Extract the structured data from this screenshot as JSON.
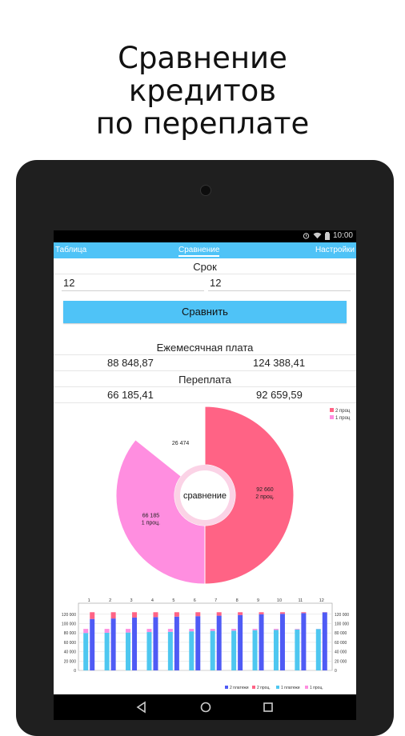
{
  "headline": [
    "Сравнение",
    "кредитов",
    "по переплате"
  ],
  "status": {
    "time": "10:00"
  },
  "tabs": [
    {
      "label": "Таблица",
      "active": false
    },
    {
      "label": "Сравнение",
      "active": true
    },
    {
      "label": "Настройки",
      "active": false
    }
  ],
  "term": {
    "label": "Срок",
    "left": "12",
    "right": "12"
  },
  "compare_button": "Сравнить",
  "monthly": {
    "label": "Ежемесячная плата",
    "left": "88 848,87",
    "right": "124 388,41"
  },
  "overpay": {
    "label": "Переплата",
    "left": "66 185,41",
    "right": "92 659,59"
  },
  "colors": {
    "accent": "#4fc3f7",
    "pink_dark": "#ff6385",
    "pink_light": "#ff8ee0",
    "blue_dark": "#4f5bf5",
    "blue_light": "#4ec7f0"
  },
  "chart_data": [
    {
      "type": "pie",
      "center_label": "сравнение",
      "slices": [
        {
          "name": "2 проц.",
          "value": 92660,
          "label": "92 660",
          "sublabel": "2 проц."
        },
        {
          "name": "1 проц.",
          "value": 66185,
          "label": "66 185",
          "sublabel": "1 проц."
        }
      ],
      "difference_label": "26 474",
      "legend": [
        "2 проц",
        "1 проц"
      ],
      "legend_position": "top-right"
    },
    {
      "type": "bar",
      "categories": [
        "1",
        "2",
        "3",
        "4",
        "5",
        "6",
        "7",
        "8",
        "9",
        "10",
        "11",
        "12"
      ],
      "y_ticks": [
        "0",
        "20 000",
        "40 000",
        "60 000",
        "80 000",
        "100 000",
        "120 000"
      ],
      "ylim": [
        0,
        130000
      ],
      "series": [
        {
          "name": "2 платежи",
          "values": [
            110000,
            111000,
            113000,
            114000,
            115000,
            116000,
            117000,
            118500,
            120000,
            121000,
            122500,
            124000
          ]
        },
        {
          "name": "2 проц.",
          "values": [
            14400,
            13400,
            11400,
            10400,
            9400,
            8400,
            7400,
            5900,
            4400,
            3400,
            1900,
            400
          ]
        },
        {
          "name": "1 платежи",
          "values": [
            80000,
            80500,
            81000,
            82000,
            82500,
            83500,
            84500,
            85000,
            86000,
            86500,
            87500,
            88500
          ]
        },
        {
          "name": "1 проц.",
          "values": [
            8800,
            8300,
            7800,
            6800,
            6300,
            5300,
            4300,
            3800,
            2800,
            2300,
            1300,
            300
          ]
        }
      ],
      "legend": [
        "2 платежи",
        "2 проц.",
        "1 платежи",
        "1 проц."
      ],
      "legend_position": "bottom"
    }
  ],
  "nav": {
    "back_icon": "back-icon",
    "home_icon": "home-icon",
    "recents_icon": "recents-icon"
  }
}
